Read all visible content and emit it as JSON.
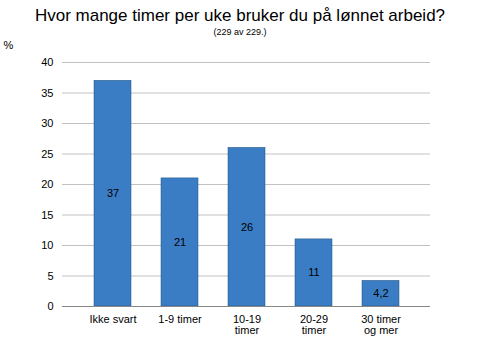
{
  "chart_data": {
    "type": "bar",
    "title": "Hvor mange timer per uke bruker du på lønnet arbeid?",
    "subtitle": "(229 av 229.)",
    "y_label": "%",
    "categories": [
      "Ikke svart",
      "1-9 timer",
      "10-19 timer",
      "20-29 timer",
      "30 timer og mer"
    ],
    "values": [
      37,
      21,
      26,
      11,
      4.2
    ],
    "value_labels": [
      "37",
      "21",
      "26",
      "11",
      "4,2"
    ],
    "color": "#3b7dc4",
    "ylim": [
      0,
      40
    ],
    "yticks": [
      0,
      5,
      10,
      15,
      20,
      25,
      30,
      35,
      40
    ],
    "grid": true,
    "data_labels": true
  }
}
